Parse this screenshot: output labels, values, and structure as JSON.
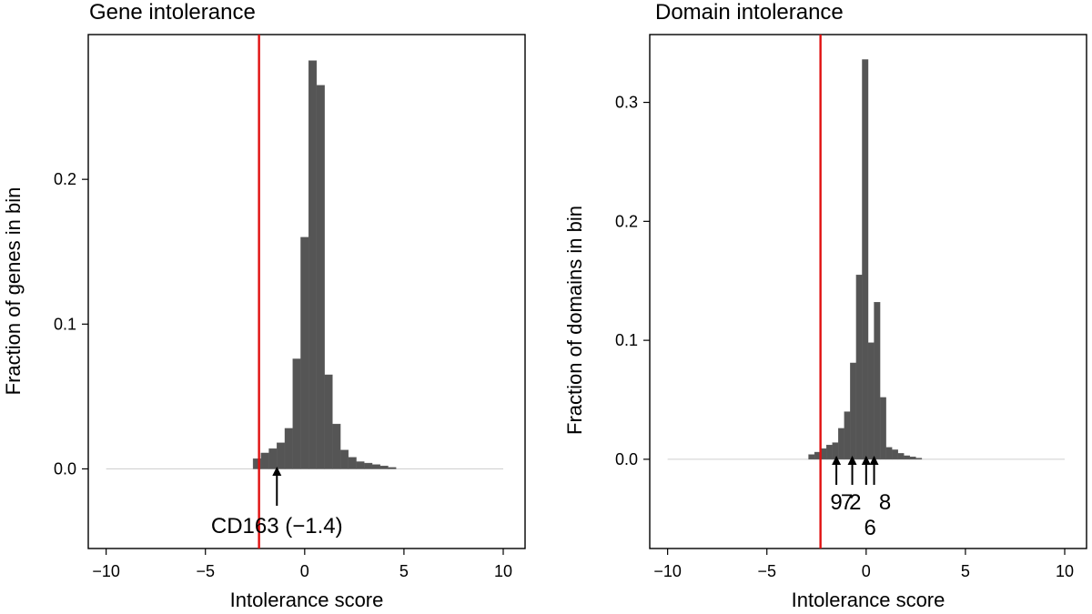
{
  "chart_data": [
    {
      "type": "bar",
      "title": "Gene intolerance",
      "xlabel": "Intolerance score",
      "ylabel": "Fraction of genes in bin",
      "xlim": [
        -10.9,
        11.1
      ],
      "ylim": [
        -0.055,
        0.3
      ],
      "xticks": [
        -10,
        -5,
        0,
        5,
        10
      ],
      "xtick_labels": [
        "−10",
        "−5",
        "0",
        "5",
        "10"
      ],
      "yticks": [
        0,
        0.1,
        0.2
      ],
      "ytick_labels": [
        "0.0",
        "0.1",
        "0.2"
      ],
      "bin_width": 0.4,
      "bin_starts": [
        -2.6,
        -2.2,
        -1.8,
        -1.4,
        -1.0,
        -0.6,
        -0.2,
        0.2,
        0.6,
        1.0,
        1.4,
        1.8,
        2.2,
        2.6,
        3.0,
        3.4,
        3.8,
        4.2
      ],
      "values": [
        0.007,
        0.011,
        0.014,
        0.018,
        0.028,
        0.076,
        0.16,
        0.282,
        0.265,
        0.065,
        0.031,
        0.013,
        0.008,
        0.005,
        0.004,
        0.003,
        0.002,
        0.001
      ],
      "tail_range": [
        -10,
        10
      ],
      "threshold_x": -2.3,
      "annotations": [
        {
          "label": "CD163 (−1.4)",
          "x": -1.4
        }
      ]
    },
    {
      "type": "bar",
      "title": "Domain intolerance",
      "xlabel": "Intolerance score",
      "ylabel": "Fraction of domains in bin",
      "xlim": [
        -10.9,
        11.1
      ],
      "ylim": [
        -0.075,
        0.357
      ],
      "xticks": [
        -10,
        -5,
        0,
        5,
        10
      ],
      "xtick_labels": [
        "−10",
        "−5",
        "0",
        "5",
        "10"
      ],
      "yticks": [
        0,
        0.1,
        0.2,
        0.3
      ],
      "ytick_labels": [
        "0.0",
        "0.1",
        "0.2",
        "0.3"
      ],
      "bin_width": 0.3,
      "bin_starts": [
        -2.9,
        -2.6,
        -2.3,
        -2.0,
        -1.7,
        -1.4,
        -1.1,
        -0.8,
        -0.5,
        -0.2,
        0.1,
        0.4,
        0.7,
        1.0,
        1.3,
        1.6,
        1.9,
        2.2,
        2.5
      ],
      "values": [
        0.004,
        0.006,
        0.009,
        0.012,
        0.014,
        0.026,
        0.04,
        0.081,
        0.155,
        0.336,
        0.098,
        0.132,
        0.052,
        0.01,
        0.008,
        0.005,
        0.003,
        0.002,
        0.001
      ],
      "tail_range": [
        -10,
        10
      ],
      "threshold_x": -2.3,
      "annotations": [
        {
          "label": "9",
          "x": -1.5
        },
        {
          "label": "7",
          "x": -0.7
        },
        {
          "label": "2",
          "x": 0.0
        },
        {
          "label": "8",
          "x": 0.4
        },
        {
          "label": "6",
          "x": 0.2
        }
      ]
    }
  ]
}
